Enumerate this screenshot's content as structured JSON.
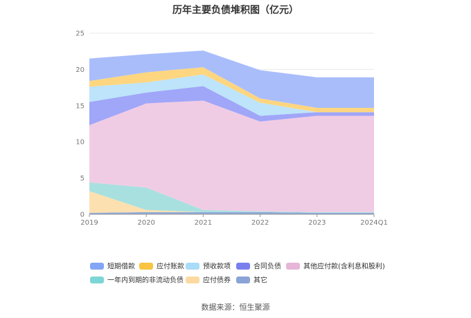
{
  "title": "历年主要负债堆积图（亿元）",
  "source": "数据来源：恒生聚源",
  "chart_data": {
    "type": "area",
    "stacked": true,
    "categories": [
      "2019",
      "2020",
      "2021",
      "2022",
      "2023",
      "2024Q1"
    ],
    "ylim": [
      0,
      25
    ],
    "yticks": [
      0,
      5,
      10,
      15,
      20,
      25
    ],
    "grid": true,
    "legend_position": "bottom",
    "series": [
      {
        "name": "其它",
        "color": "#8fa9d8",
        "values": [
          0.2,
          0.3,
          0.3,
          0.3,
          0.2,
          0.2
        ]
      },
      {
        "name": "应付债券",
        "color": "#fde0b0",
        "values": [
          3.0,
          0.3,
          0.0,
          0.0,
          0.0,
          0.0
        ]
      },
      {
        "name": "一年内到期的非流动负债",
        "color": "#a8e0e0",
        "values": [
          1.2,
          3.1,
          0.3,
          0.1,
          0.1,
          0.1
        ]
      },
      {
        "name": "其他应付款(含利息和股利)",
        "color": "#f0cce4",
        "values": [
          7.9,
          11.6,
          15.1,
          12.4,
          13.3,
          13.3
        ]
      },
      {
        "name": "合同负债",
        "color": "#a0a6f8",
        "values": [
          3.2,
          1.5,
          2.0,
          0.8,
          0.5,
          0.5
        ]
      },
      {
        "name": "预收款项",
        "color": "#bde4fa",
        "values": [
          2.1,
          1.4,
          1.6,
          1.8,
          0.0,
          0.0
        ]
      },
      {
        "name": "应付账款",
        "color": "#ffd680",
        "values": [
          0.8,
          1.4,
          1.0,
          0.6,
          0.6,
          0.6
        ]
      },
      {
        "name": "短期借款",
        "color": "#a9bdfb",
        "values": [
          3.1,
          2.5,
          2.3,
          3.9,
          4.2,
          4.2
        ]
      }
    ],
    "legend": [
      {
        "name": "短期借款",
        "color": "#82a6f5"
      },
      {
        "name": "应付账款",
        "color": "#f9c440"
      },
      {
        "name": "预收款项",
        "color": "#a8dcf7"
      },
      {
        "name": "合同负债",
        "color": "#7a7fed"
      },
      {
        "name": "其他应付款(含利息和股利)",
        "color": "#e6b5d8"
      },
      {
        "name": "一年内到期的非流动负债",
        "color": "#7dd6d6"
      },
      {
        "name": "应付债券",
        "color": "#fcd9a0"
      },
      {
        "name": "其它",
        "color": "#8aa4d6"
      }
    ]
  }
}
